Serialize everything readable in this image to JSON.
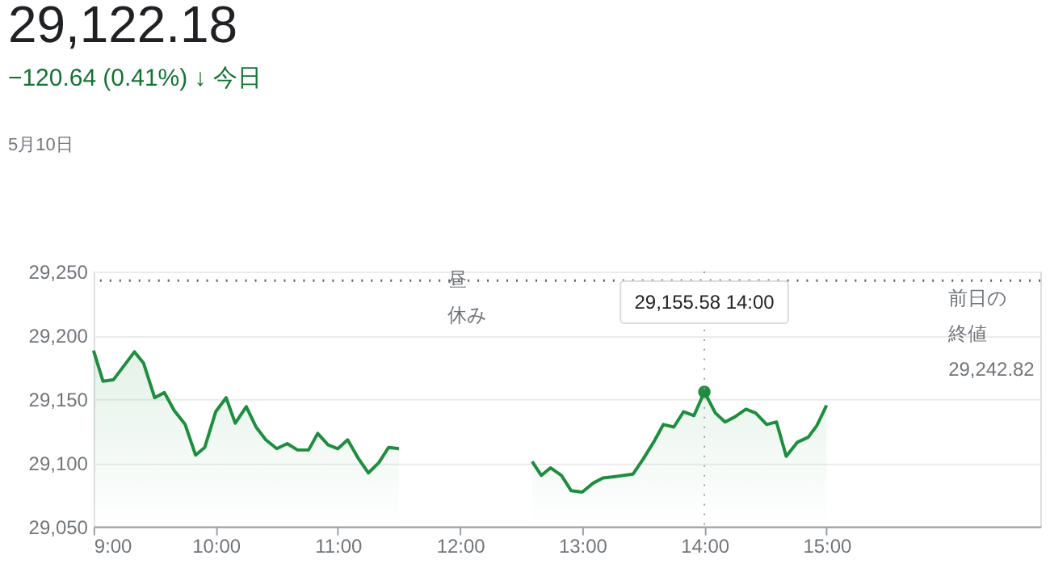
{
  "chart_data": {
    "type": "area",
    "title": "29,122.18",
    "subtitle": "−120.64 (0.41%) ↓ 今日",
    "annotations": [
      "5月10日",
      "昼休み",
      "29,155.58  14:00"
    ],
    "x": [
      9.0,
      9.077,
      9.162,
      9.335,
      9.41,
      9.5,
      9.58,
      9.66,
      9.75,
      9.835,
      9.91,
      10.0,
      10.085,
      10.16,
      10.25,
      10.33,
      10.41,
      10.5,
      10.585,
      10.67,
      10.76,
      10.835,
      10.92,
      11.0,
      11.08,
      11.17,
      11.25,
      11.335,
      11.415,
      11.5,
      12.0,
      12.59,
      12.665,
      12.74,
      12.83,
      12.91,
      13.0,
      13.09,
      13.17,
      13.26,
      13.415,
      13.5,
      13.59,
      13.665,
      13.75,
      13.83,
      13.915,
      14.0,
      14.09,
      14.17,
      14.25,
      14.34,
      14.42,
      14.51,
      14.59,
      14.67,
      14.76,
      14.85,
      14.92,
      15.0
    ],
    "series": [
      {
        "color": "#1e8e3e",
        "values": [
          29188,
          29164,
          29165,
          29187,
          29178,
          29151,
          29155,
          29141,
          29130,
          29106,
          29112,
          29140,
          29151,
          29131,
          29144,
          29128,
          29118,
          29111,
          29115,
          29110,
          29110,
          29123,
          29114,
          29111,
          29118,
          29103,
          29092,
          29100,
          29112,
          29111,
          null,
          29101,
          29090,
          29096,
          29090,
          29078,
          29077,
          29084,
          29088,
          29089,
          29091,
          29103,
          29117,
          29130,
          29128,
          29140,
          29137,
          29155.58,
          29139,
          29132,
          29136,
          29142,
          29139,
          29130,
          29132,
          29105,
          29116,
          29120,
          29129,
          29145
        ]
      },
      {
        "type": "scatter",
        "marker": "circle",
        "color": "#1e8e3e",
        "x": [
          14
        ],
        "values": [
          29155.58
        ]
      }
    ],
    "xlim": [
      9,
      16.75
    ],
    "xticks": [
      {
        "value": 9,
        "label": "9:00"
      },
      {
        "value": 10,
        "label": "10:00"
      },
      {
        "value": 11,
        "label": "11:00"
      },
      {
        "value": 12,
        "label": "12:00"
      },
      {
        "value": 13,
        "label": "13:00"
      },
      {
        "value": 14,
        "label": "14:00"
      },
      {
        "value": 15,
        "label": "15:00"
      }
    ],
    "ylim": [
      29050,
      29250
    ],
    "yticks": [
      {
        "value": 29050,
        "label": "29,050"
      },
      {
        "value": 29100,
        "label": "29,100"
      },
      {
        "value": 29150,
        "label": "29,150"
      },
      {
        "value": 29200,
        "label": "29,200"
      },
      {
        "value": 29250,
        "label": "29,250"
      }
    ],
    "ref_lines": [
      {
        "axis": "y",
        "value": 29242.82,
        "label": "前日の終値 29,242.82",
        "line_style": "dotted",
        "color": "#5f6368"
      },
      {
        "axis": "x",
        "value": 14,
        "line_style": "dotted",
        "color": "#9aa0a6"
      }
    ],
    "grid": "y",
    "marker": "none",
    "line_style": "solid"
  }
}
